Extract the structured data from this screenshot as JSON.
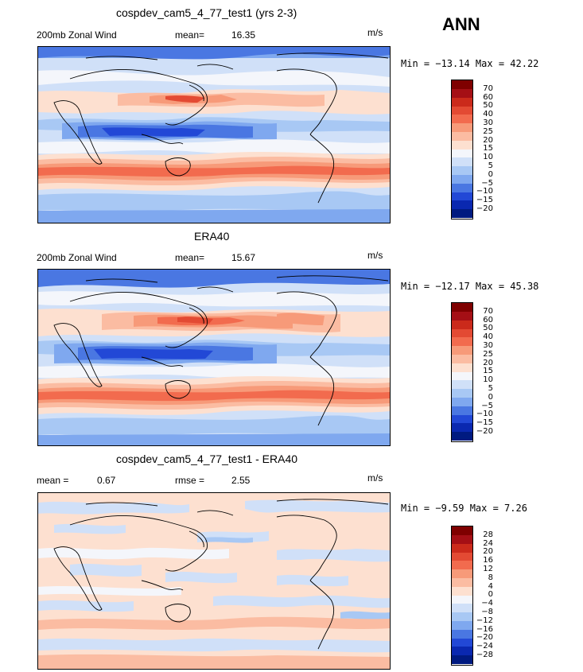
{
  "season": "ANN",
  "panels": [
    {
      "title": "cospdev_cam5_4_77_test1 (yrs 2-3)",
      "left_label": "200mb Zonal Wind",
      "stat_label": "mean=",
      "stat_value": "16.35",
      "units": "m/s",
      "minmax": "Min = −13.14 Max = 42.22",
      "colorbar_labels": [
        "70",
        "60",
        "50",
        "40",
        "30",
        "25",
        "20",
        "15",
        "10",
        "5",
        "0",
        "−5",
        "−10",
        "−15",
        "−20"
      ],
      "palette": [
        "#7f0000",
        "#a50f15",
        "#cb2a1b",
        "#e34a33",
        "#f26b4e",
        "#f79a79",
        "#fbbca2",
        "#fde0d0",
        "#f4f6fb",
        "#d0e0f8",
        "#a8c8f4",
        "#7fa8ef",
        "#4a77e2",
        "#2248d6",
        "#0a28b0",
        "#001a80"
      ]
    },
    {
      "title": "ERA40",
      "left_label": "200mb Zonal Wind",
      "stat_label": "mean=",
      "stat_value": "15.67",
      "units": "m/s",
      "minmax": "Min = −12.17 Max = 45.38",
      "colorbar_labels": [
        "70",
        "60",
        "50",
        "40",
        "30",
        "25",
        "20",
        "15",
        "10",
        "5",
        "0",
        "−5",
        "−10",
        "−15",
        "−20"
      ],
      "palette": [
        "#7f0000",
        "#a50f15",
        "#cb2a1b",
        "#e34a33",
        "#f26b4e",
        "#f79a79",
        "#fbbca2",
        "#fde0d0",
        "#f4f6fb",
        "#d0e0f8",
        "#a8c8f4",
        "#7fa8ef",
        "#4a77e2",
        "#2248d6",
        "#0a28b0",
        "#001a80"
      ]
    },
    {
      "title": "cospdev_cam5_4_77_test1 - ERA40",
      "left_label": "mean =",
      "left_value": "0.67",
      "stat_label": "rmse =",
      "stat_value": "2.55",
      "units": "m/s",
      "minmax": "Min = −9.59 Max = 7.26",
      "colorbar_labels": [
        "28",
        "24",
        "20",
        "16",
        "12",
        "8",
        "4",
        "0",
        "−4",
        "−8",
        "−12",
        "−16",
        "−20",
        "−24",
        "−28"
      ],
      "palette": [
        "#7f0000",
        "#a50f15",
        "#cb2a1b",
        "#e34a33",
        "#f26b4e",
        "#f79a79",
        "#fbbca2",
        "#fde0d0",
        "#f4f6fb",
        "#d0e0f8",
        "#a8c8f4",
        "#7fa8ef",
        "#4a77e2",
        "#2248d6",
        "#0a28b0",
        "#001a80"
      ]
    }
  ]
}
